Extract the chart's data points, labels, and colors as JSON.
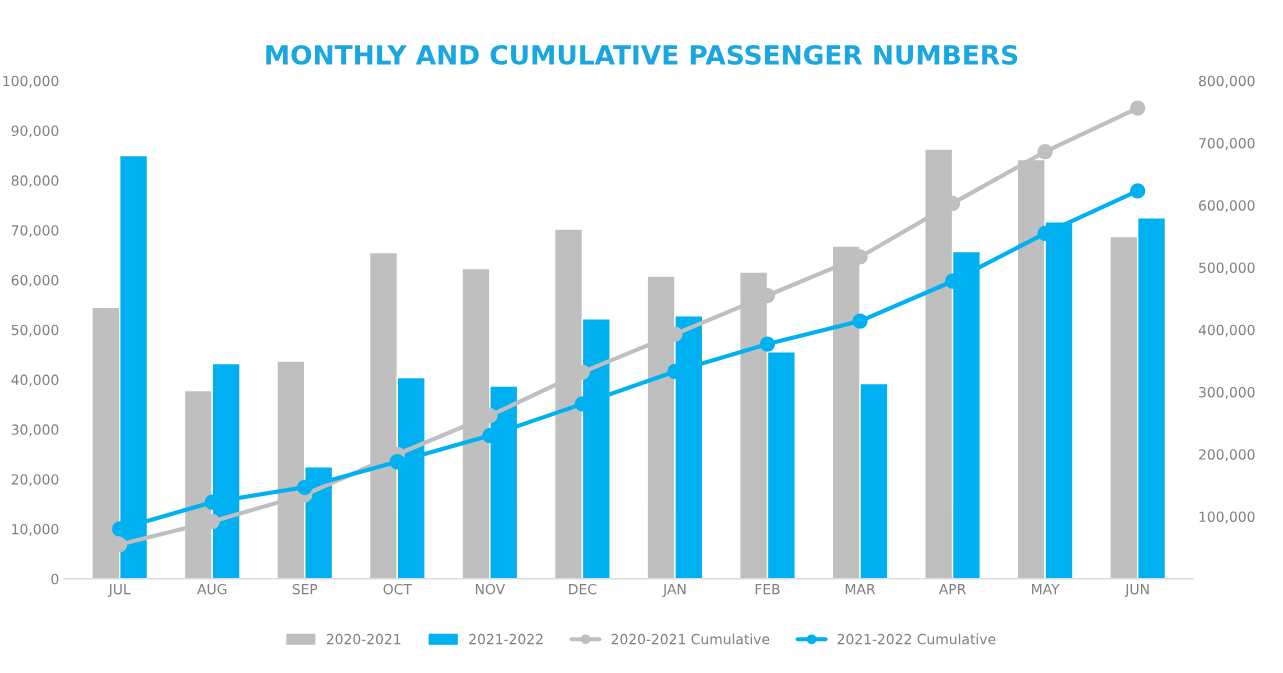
{
  "chart_data": {
    "type": "bar",
    "title": "MONTHLY AND CUMULATIVE PASSENGER NUMBERS",
    "categories": [
      "JUL",
      "AUG",
      "SEP",
      "OCT",
      "NOV",
      "DEC",
      "JAN",
      "FEB",
      "MAR",
      "APR",
      "MAY",
      "JUN"
    ],
    "series": [
      {
        "name": "2020-2021",
        "color": "#bfbfbf",
        "values": [
          54500,
          37800,
          43700,
          65500,
          62300,
          70200,
          60800,
          61600,
          66800,
          86300,
          84200,
          68700
        ]
      },
      {
        "name": "2021-2022",
        "color": "#00b0f0",
        "values": [
          85000,
          43200,
          22500,
          40400,
          38700,
          52200,
          52800,
          45600,
          39200,
          65700,
          71700,
          72500
        ]
      },
      {
        "name": "2020-2021 Cumulative",
        "type": "line",
        "axis": "y2",
        "marker": "circle",
        "color": "#bfbfbf",
        "values": [
          55000,
          92000,
          135000,
          200000,
          262000,
          332000,
          393000,
          455000,
          517000,
          603000,
          686000,
          756000
        ]
      },
      {
        "name": "2021-2022 Cumulative",
        "type": "line",
        "axis": "y2",
        "marker": "circle",
        "color": "#00b0f0",
        "values": [
          80000,
          123000,
          147000,
          188000,
          230000,
          281000,
          333000,
          377000,
          414000,
          478000,
          555000,
          623000
        ]
      }
    ],
    "ylim": [
      0,
      100000
    ],
    "yticks": [
      {
        "value": 0,
        "label": "0"
      },
      {
        "value": 10000,
        "label": "10,000"
      },
      {
        "value": 20000,
        "label": "20,000"
      },
      {
        "value": 30000,
        "label": "30,000"
      },
      {
        "value": 40000,
        "label": "40,000"
      },
      {
        "value": 50000,
        "label": "50,000"
      },
      {
        "value": 60000,
        "label": "60,000"
      },
      {
        "value": 70000,
        "label": "70,000"
      },
      {
        "value": 80000,
        "label": "80,000"
      },
      {
        "value": 90000,
        "label": "90,000"
      },
      {
        "value": 100000,
        "label": "100,000"
      }
    ],
    "y2lim": [
      0,
      800000
    ],
    "y2ticks": [
      {
        "value": 0,
        "label": null
      },
      {
        "value": 100000,
        "label": "100,000"
      },
      {
        "value": 200000,
        "label": "200,000"
      },
      {
        "value": 300000,
        "label": "300,000"
      },
      {
        "value": 400000,
        "label": "400,000"
      },
      {
        "value": 500000,
        "label": "500,000"
      },
      {
        "value": 600000,
        "label": "600,000"
      },
      {
        "value": 700000,
        "label": "700,000"
      },
      {
        "value": 800000,
        "label": "800,000"
      }
    ],
    "grid": false,
    "legend": "bottom"
  }
}
